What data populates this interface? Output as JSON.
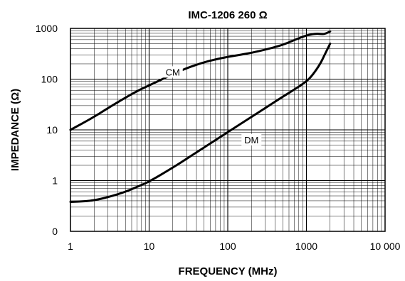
{
  "chart_data": {
    "type": "line",
    "title": "IMC-1206 260 Ω",
    "xlabel": "FREQUENCY (MHz)",
    "ylabel": "IMPEDANCE (Ω)",
    "x_scale": "log",
    "y_scale": "log",
    "xlim": [
      1,
      10000
    ],
    "ylim_decades": [
      0,
      1000
    ],
    "x_ticks": [
      {
        "value": 1,
        "label": "1"
      },
      {
        "value": 10,
        "label": "10"
      },
      {
        "value": 100,
        "label": "100"
      },
      {
        "value": 1000,
        "label": "1000"
      },
      {
        "value": 10000,
        "label": "10 000"
      }
    ],
    "y_ticks": [
      {
        "value": 0.1,
        "label": "0"
      },
      {
        "value": 1,
        "label": "1"
      },
      {
        "value": 10,
        "label": "10"
      },
      {
        "value": 100,
        "label": "100"
      },
      {
        "value": 1000,
        "label": "1000"
      }
    ],
    "grid": true,
    "series": [
      {
        "name": "CM",
        "label_at": [
          20,
          130
        ],
        "x": [
          1,
          2,
          3,
          5,
          7,
          10,
          20,
          30,
          50,
          70,
          100,
          150,
          200,
          300,
          500,
          700,
          1000,
          1300,
          1500,
          1700,
          2000
        ],
        "y": [
          10,
          18,
          27,
          43,
          58,
          75,
          125,
          165,
          215,
          245,
          275,
          305,
          330,
          380,
          470,
          590,
          730,
          790,
          780,
          770,
          870
        ]
      },
      {
        "name": "DM",
        "label_at": [
          200,
          6
        ],
        "x": [
          1,
          1.5,
          2,
          3,
          5,
          7,
          10,
          20,
          30,
          50,
          100,
          200,
          300,
          500,
          700,
          1000,
          1200,
          1500,
          1700,
          2000
        ],
        "y": [
          0.38,
          0.39,
          0.41,
          0.47,
          0.6,
          0.75,
          0.95,
          1.8,
          2.7,
          4.5,
          9,
          18,
          27,
          45,
          62,
          90,
          120,
          200,
          300,
          500
        ]
      }
    ]
  }
}
